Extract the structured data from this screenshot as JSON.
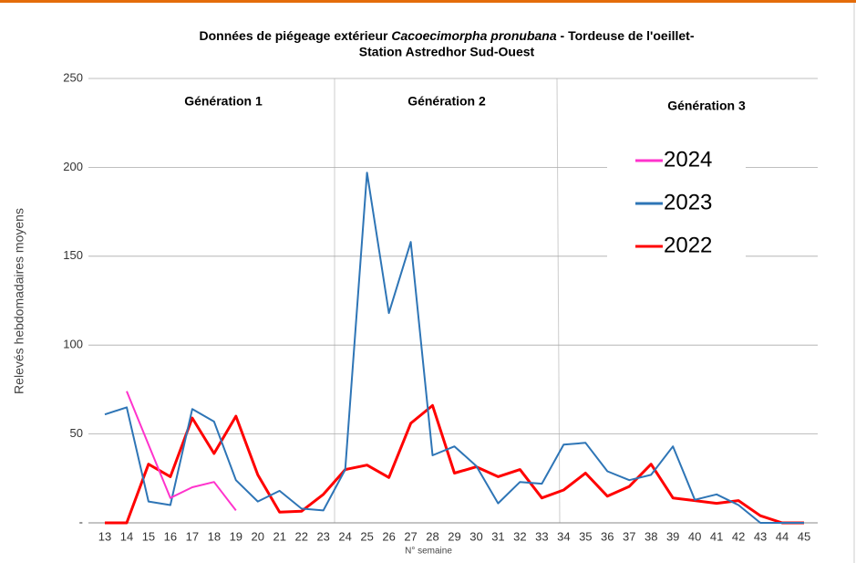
{
  "chart_data": {
    "type": "line",
    "title": {
      "line1": [
        "Données de piégeage extérieur ",
        "Cacoecimorpha pronubana",
        " - Tordeuse de l'oeillet-"
      ],
      "line2": "Station Astredhor Sud-Ouest"
    },
    "y_label": "Relevés hebdomadaires moyens",
    "x_label": "N° semaine",
    "annotations": [
      "Génération 1",
      "Génération 2",
      "Génération 3"
    ],
    "categories": [
      13,
      14,
      15,
      16,
      17,
      18,
      19,
      20,
      21,
      22,
      23,
      24,
      25,
      26,
      27,
      28,
      29,
      30,
      31,
      32,
      33,
      34,
      35,
      36,
      37,
      38,
      39,
      40,
      41,
      42,
      43,
      44,
      45
    ],
    "series": [
      {
        "name": "2024",
        "color": "#ff33cc",
        "values": [
          null,
          74,
          44,
          14,
          20,
          23,
          7,
          null,
          null,
          null,
          null,
          null,
          null,
          null,
          null,
          null,
          null,
          null,
          null,
          null,
          null,
          null,
          null,
          null,
          null,
          null,
          null,
          null,
          null,
          null,
          null,
          null,
          null
        ]
      },
      {
        "name": "2023",
        "color": "#2e75b6",
        "values": [
          61,
          65,
          12,
          10,
          64,
          57,
          24,
          12,
          18,
          8,
          7,
          30,
          197,
          118,
          158,
          38,
          43,
          32,
          11,
          23,
          22,
          44,
          45,
          29,
          24,
          27,
          43,
          13,
          16,
          10,
          0,
          0,
          0
        ]
      },
      {
        "name": "2022",
        "color": "#ff0000",
        "values": [
          0,
          0,
          33,
          26,
          59,
          39,
          60,
          27,
          6,
          6.5,
          16,
          30,
          32.5,
          25.5,
          56,
          66,
          28,
          31.5,
          26,
          30,
          14,
          18.5,
          28,
          15,
          20.5,
          33,
          14,
          12.5,
          11,
          12.5,
          4,
          0,
          0
        ]
      }
    ],
    "ylim": [
      0,
      250
    ],
    "yticks": [
      {
        "value": 0,
        "label": "-"
      },
      50,
      100,
      150,
      200,
      250
    ],
    "grid": true
  }
}
